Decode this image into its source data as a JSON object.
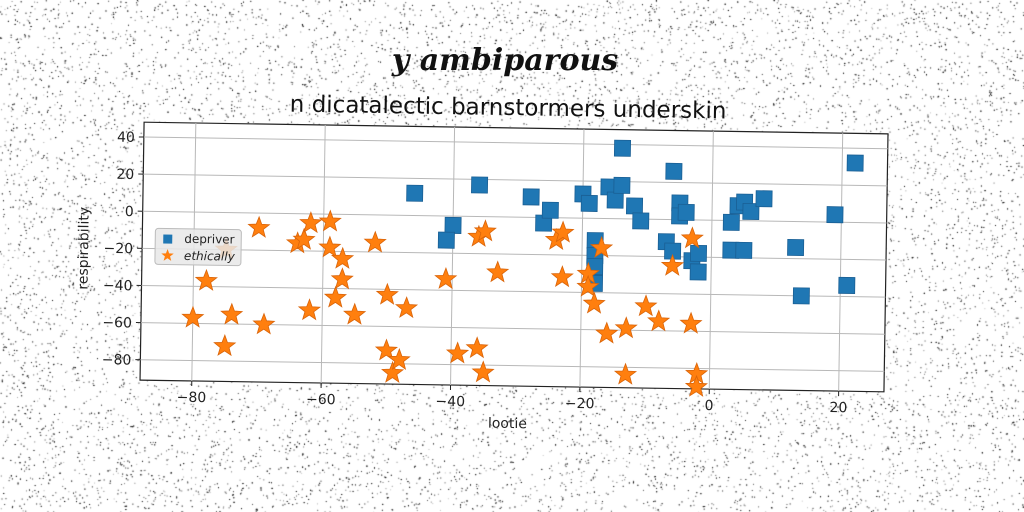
{
  "chart_data": {
    "type": "scatter",
    "suptitle": "y ambiparous",
    "title": "n dicatalectic barnstormers underskin",
    "xlabel": "lootie",
    "ylabel": "respirability",
    "xlim": [
      -88,
      27
    ],
    "ylim": [
      -91,
      48
    ],
    "xticks": [
      "−80",
      "−60",
      "−40",
      "−20",
      "0",
      "20"
    ],
    "xtick_values": [
      -80,
      -60,
      -40,
      -20,
      0,
      20
    ],
    "yticks": [
      "40",
      "20",
      "0",
      "−20",
      "−40",
      "−60",
      "−80"
    ],
    "ytick_values": [
      40,
      20,
      0,
      -20,
      -40,
      -60,
      -80
    ],
    "grid": true,
    "legend_position": "center-left",
    "series": [
      {
        "name": "depriver",
        "marker": "square",
        "color": "#1f77b4",
        "points": [
          [
            -46,
            12
          ],
          [
            -40,
            -5
          ],
          [
            -41,
            -13
          ],
          [
            -36,
            17
          ],
          [
            -28,
            11
          ],
          [
            -26,
            -3
          ],
          [
            -25,
            4
          ],
          [
            -20,
            13
          ],
          [
            -19,
            8
          ],
          [
            -18,
            -12
          ],
          [
            -18,
            -20
          ],
          [
            -18,
            -26
          ],
          [
            -18,
            -35
          ],
          [
            -16,
            17
          ],
          [
            -15,
            10
          ],
          [
            -14,
            38
          ],
          [
            -14,
            18
          ],
          [
            -12,
            7
          ],
          [
            -11,
            -1
          ],
          [
            -7,
            -12
          ],
          [
            -6,
            26
          ],
          [
            -6,
            -17
          ],
          [
            -5,
            9
          ],
          [
            -5,
            2
          ],
          [
            -4,
            4
          ],
          [
            -3,
            -22
          ],
          [
            -2,
            -18
          ],
          [
            -2,
            -28
          ],
          [
            3,
            -1
          ],
          [
            3,
            -16
          ],
          [
            4,
            8
          ],
          [
            5,
            -16
          ],
          [
            5,
            10
          ],
          [
            6,
            5
          ],
          [
            8,
            12
          ],
          [
            13,
            -14
          ],
          [
            14,
            -40
          ],
          [
            19,
            4
          ],
          [
            21,
            -34
          ],
          [
            22,
            32
          ]
        ]
      },
      {
        "name": "ethically",
        "marker": "star",
        "color": "#ff7f0e",
        "points": [
          [
            -80,
            -57
          ],
          [
            -78,
            -37
          ],
          [
            -75,
            -20
          ],
          [
            -75,
            -72
          ],
          [
            -74,
            -55
          ],
          [
            -70,
            -8
          ],
          [
            -69,
            -60
          ],
          [
            -64,
            -16
          ],
          [
            -63,
            -14
          ],
          [
            -62,
            -52
          ],
          [
            -62,
            -5
          ],
          [
            -59,
            -4
          ],
          [
            -59,
            -18
          ],
          [
            -58,
            -45
          ],
          [
            -57,
            -35
          ],
          [
            -57,
            -24
          ],
          [
            -55,
            -54
          ],
          [
            -52,
            -15
          ],
          [
            -50,
            -43
          ],
          [
            -50,
            -73
          ],
          [
            -49,
            -85
          ],
          [
            -48,
            -78
          ],
          [
            -47,
            -50
          ],
          [
            -41,
            -34
          ],
          [
            -39,
            -74
          ],
          [
            -36,
            -71
          ],
          [
            -36,
            -11
          ],
          [
            -35,
            -8
          ],
          [
            -35,
            -84
          ],
          [
            -33,
            -30
          ],
          [
            -24,
            -12
          ],
          [
            -23,
            -8
          ],
          [
            -23,
            -32
          ],
          [
            -19,
            -30
          ],
          [
            -19,
            -37
          ],
          [
            -18,
            -46
          ],
          [
            -17,
            -16
          ],
          [
            -16,
            -62
          ],
          [
            -13,
            -84
          ],
          [
            -13,
            -59
          ],
          [
            -10,
            -47
          ],
          [
            -8,
            -55
          ],
          [
            -6,
            -25
          ],
          [
            -3,
            -10
          ],
          [
            -3,
            -56
          ],
          [
            -2,
            -83
          ],
          [
            -2,
            -90
          ]
        ]
      }
    ]
  }
}
